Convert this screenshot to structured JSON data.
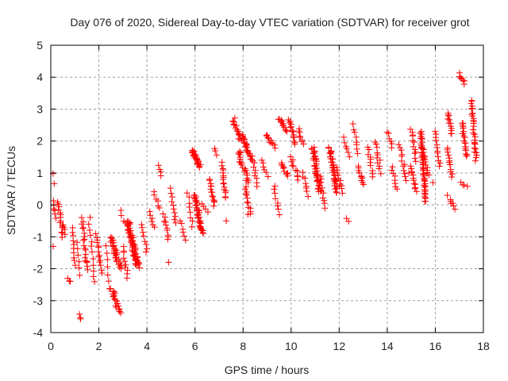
{
  "chart_data": {
    "type": "scatter",
    "title": "Day 076 of 2020, Sidereal Day-to-day VTEC variation (SDTVAR) for receiver grot",
    "xlabel": "GPS time / hours",
    "ylabel": "SDTVAR / TECUs",
    "xlim": [
      0,
      18
    ],
    "ylim": [
      -4,
      5
    ],
    "xticks": [
      0,
      2,
      4,
      6,
      8,
      10,
      12,
      14,
      16,
      18
    ],
    "yticks": [
      -4,
      -3,
      -2,
      -1,
      0,
      1,
      2,
      3,
      4,
      5
    ],
    "grid": true,
    "marker": "+",
    "color": "#ff0000",
    "series": [
      {
        "name": "SDTVAR",
        "streaks_note": "vertical streaks of points: [x_start_h, x_end_h, y_start, y_end, count]",
        "streaks": [
          [
            0.1,
            0.15,
            1.0,
            0.7,
            2
          ],
          [
            0.1,
            0.2,
            0.1,
            -0.4,
            6
          ],
          [
            0.3,
            0.5,
            0.1,
            -1.0,
            14
          ],
          [
            0.5,
            0.6,
            -0.6,
            -0.9,
            4
          ],
          [
            0.7,
            0.8,
            -2.3,
            -2.4,
            3
          ],
          [
            0.9,
            1.0,
            -0.7,
            -1.9,
            10
          ],
          [
            1.1,
            1.2,
            -1.2,
            -2.2,
            6
          ],
          [
            1.2,
            1.25,
            -3.4,
            -3.6,
            3
          ],
          [
            1.3,
            1.5,
            -0.4,
            -2.0,
            18
          ],
          [
            1.6,
            1.8,
            -0.4,
            -2.4,
            12
          ],
          [
            1.9,
            2.1,
            -0.9,
            -2.1,
            14
          ],
          [
            2.3,
            2.4,
            -1.3,
            -2.4,
            6
          ],
          [
            2.5,
            2.9,
            -1.0,
            -2.0,
            30
          ],
          [
            2.5,
            2.9,
            -2.6,
            -3.4,
            22
          ],
          [
            2.9,
            3.1,
            -0.2,
            -0.6,
            4
          ],
          [
            3.0,
            3.2,
            -1.3,
            -2.3,
            10
          ],
          [
            3.2,
            3.6,
            -0.5,
            -1.9,
            60
          ],
          [
            3.5,
            3.7,
            -1.6,
            -2.0,
            4
          ],
          [
            3.8,
            4.0,
            -0.6,
            -1.5,
            8
          ],
          [
            4.1,
            4.3,
            -0.2,
            -0.7,
            6
          ],
          [
            4.3,
            4.5,
            0.4,
            -0.1,
            6
          ],
          [
            4.5,
            4.6,
            1.2,
            0.9,
            4
          ],
          [
            4.7,
            4.9,
            -0.3,
            -1.1,
            10
          ],
          [
            5.0,
            5.2,
            0.5,
            -0.6,
            10
          ],
          [
            5.4,
            5.6,
            -0.5,
            -1.1,
            6
          ],
          [
            5.7,
            5.9,
            0.4,
            -0.7,
            8
          ],
          [
            5.9,
            6.2,
            1.7,
            1.2,
            30
          ],
          [
            6.0,
            6.3,
            0.3,
            -0.9,
            40
          ],
          [
            6.3,
            6.5,
            0.0,
            -0.2,
            4
          ],
          [
            6.6,
            6.8,
            0.8,
            0.0,
            14
          ],
          [
            6.8,
            6.9,
            1.8,
            1.6,
            3
          ],
          [
            7.1,
            7.3,
            1.3,
            0.2,
            16
          ],
          [
            7.6,
            7.9,
            2.7,
            2.0,
            16
          ],
          [
            7.8,
            8.2,
            1.7,
            0.7,
            20
          ],
          [
            8.0,
            8.3,
            2.2,
            1.4,
            24
          ],
          [
            8.1,
            8.3,
            0.6,
            -0.3,
            12
          ],
          [
            8.4,
            8.6,
            1.5,
            0.6,
            10
          ],
          [
            8.8,
            9.0,
            1.4,
            0.9,
            6
          ],
          [
            9.0,
            9.3,
            2.2,
            1.8,
            10
          ],
          [
            9.3,
            9.5,
            0.6,
            -0.3,
            8
          ],
          [
            9.5,
            9.8,
            2.7,
            2.3,
            12
          ],
          [
            9.6,
            9.9,
            1.3,
            0.9,
            10
          ],
          [
            9.9,
            10.2,
            2.7,
            1.9,
            14
          ],
          [
            10.0,
            10.3,
            1.5,
            0.8,
            10
          ],
          [
            10.3,
            10.5,
            2.4,
            1.9,
            8
          ],
          [
            10.5,
            10.7,
            1.0,
            0.3,
            8
          ],
          [
            10.9,
            11.2,
            1.8,
            0.4,
            40
          ],
          [
            11.2,
            11.4,
            0.9,
            -0.1,
            10
          ],
          [
            11.6,
            11.9,
            1.8,
            0.4,
            40
          ],
          [
            11.9,
            12.1,
            1.2,
            0.4,
            10
          ],
          [
            12.2,
            12.4,
            2.1,
            1.5,
            6
          ],
          [
            12.3,
            12.4,
            -0.4,
            -0.5,
            2
          ],
          [
            12.6,
            12.8,
            2.5,
            1.6,
            8
          ],
          [
            12.8,
            13.0,
            1.2,
            0.6,
            10
          ],
          [
            13.2,
            13.4,
            1.8,
            0.9,
            10
          ],
          [
            13.5,
            13.7,
            2.0,
            1.0,
            10
          ],
          [
            14.0,
            14.2,
            2.3,
            1.8,
            6
          ],
          [
            14.2,
            14.4,
            1.2,
            0.5,
            8
          ],
          [
            14.5,
            14.8,
            1.9,
            0.8,
            12
          ],
          [
            15.0,
            15.2,
            2.4,
            1.4,
            12
          ],
          [
            15.0,
            15.2,
            1.2,
            0.4,
            12
          ],
          [
            15.4,
            15.6,
            2.3,
            0.1,
            50
          ],
          [
            15.5,
            15.7,
            1.7,
            0.9,
            12
          ],
          [
            16.0,
            16.2,
            2.3,
            1.2,
            12
          ],
          [
            16.5,
            16.7,
            2.9,
            2.2,
            12
          ],
          [
            16.5,
            16.7,
            1.8,
            0.9,
            12
          ],
          [
            16.6,
            16.8,
            0.2,
            -0.1,
            6
          ],
          [
            17.0,
            17.2,
            4.1,
            3.8,
            8
          ],
          [
            17.1,
            17.3,
            2.6,
            1.5,
            20
          ],
          [
            17.1,
            17.3,
            0.7,
            0.6,
            4
          ],
          [
            17.5,
            17.7,
            3.3,
            1.4,
            30
          ]
        ],
        "points": [
          [
            0.1,
            -1.3
          ],
          [
            1.5,
            -1.8
          ],
          [
            4.9,
            -1.8
          ],
          [
            7.3,
            -0.5
          ],
          [
            8.2,
            -0.3
          ],
          [
            12.1,
            0.6
          ],
          [
            13.7,
            1.4
          ],
          [
            14.9,
            1.0
          ],
          [
            15.9,
            0.7
          ],
          [
            16.5,
            0.3
          ]
        ]
      }
    ]
  }
}
